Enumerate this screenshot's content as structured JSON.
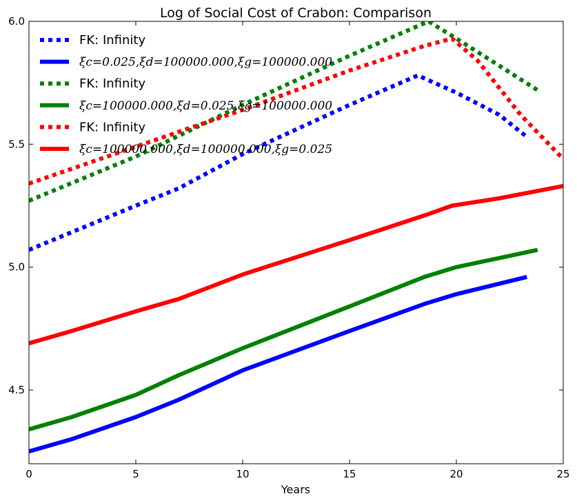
{
  "chart_data": {
    "type": "line",
    "title": "Log of Social Cost of Crabon: Comparison",
    "xlabel": "Years",
    "ylabel": "",
    "xlim": [
      0,
      25
    ],
    "ylim": [
      4.2,
      6.0
    ],
    "xticks": [
      0,
      5,
      10,
      15,
      20,
      25
    ],
    "yticks": [
      4.5,
      5.0,
      5.5,
      6.0
    ],
    "xtick_labels": [
      "0",
      "5",
      "10",
      "15",
      "20",
      "25"
    ],
    "ytick_labels": [
      "4.5",
      "5.0",
      "5.5",
      "6.0"
    ],
    "grid": false,
    "legend_position": "upper-left",
    "series": [
      {
        "name": "FK: Infinity",
        "color": "#0000ff",
        "style": "dotted",
        "x": [
          0,
          5,
          7,
          10,
          15,
          18.2,
          20,
          22,
          23.3
        ],
        "y": [
          5.07,
          5.25,
          5.32,
          5.46,
          5.66,
          5.78,
          5.71,
          5.62,
          5.53
        ]
      },
      {
        "name": "$\\xi_c=0.025,\\xi_d=100000.000,\\xi_g=100000.000$",
        "color": "#0000ff",
        "style": "solid",
        "x": [
          0,
          2,
          5,
          7,
          10,
          15,
          18.5,
          20,
          23.3
        ],
        "y": [
          4.25,
          4.3,
          4.39,
          4.46,
          4.58,
          4.74,
          4.85,
          4.89,
          4.96
        ]
      },
      {
        "name": "FK: Infinity",
        "color": "#008000",
        "style": "dotted",
        "x": [
          0,
          5,
          10,
          15,
          18.7,
          20,
          22,
          23.8
        ],
        "y": [
          5.27,
          5.45,
          5.66,
          5.86,
          6.0,
          5.93,
          5.82,
          5.72
        ]
      },
      {
        "name": "$\\xi_c=100000.000,\\xi_d=0.025,\\xi_g=100000.000$",
        "color": "#008000",
        "style": "solid",
        "x": [
          0,
          2,
          5,
          7,
          10,
          15,
          18.5,
          20,
          23.8
        ],
        "y": [
          4.34,
          4.39,
          4.48,
          4.56,
          4.67,
          4.84,
          4.96,
          5.0,
          5.07
        ]
      },
      {
        "name": "FK: Infinity",
        "color": "#ff0000",
        "style": "dotted",
        "x": [
          0,
          5,
          10,
          15,
          18.5,
          19.8,
          21,
          23,
          25
        ],
        "y": [
          5.34,
          5.49,
          5.64,
          5.8,
          5.9,
          5.93,
          5.84,
          5.62,
          5.44
        ]
      },
      {
        "name": "$\\xi_c=100000.000,\\xi_d=100000.000,\\xi_g=0.025$",
        "color": "#ff0000",
        "style": "solid",
        "x": [
          0,
          2,
          5,
          7,
          10,
          15,
          18.5,
          19.8,
          22,
          25
        ],
        "y": [
          4.69,
          4.74,
          4.82,
          4.87,
          4.97,
          5.11,
          5.21,
          5.25,
          5.28,
          5.33
        ]
      }
    ],
    "legend_display": [
      {
        "text": "FK: Infinity",
        "math": false
      },
      {
        "text": "ξc=0.025,ξd=100000.000,ξg=100000.000",
        "math": true
      },
      {
        "text": "FK: Infinity",
        "math": false
      },
      {
        "text": "ξc=100000.000,ξd=0.025,ξg=100000.000",
        "math": true
      },
      {
        "text": "FK: Infinity",
        "math": false
      },
      {
        "text": "ξc=100000.000,ξd=100000.000,ξg=0.025",
        "math": true
      }
    ]
  }
}
